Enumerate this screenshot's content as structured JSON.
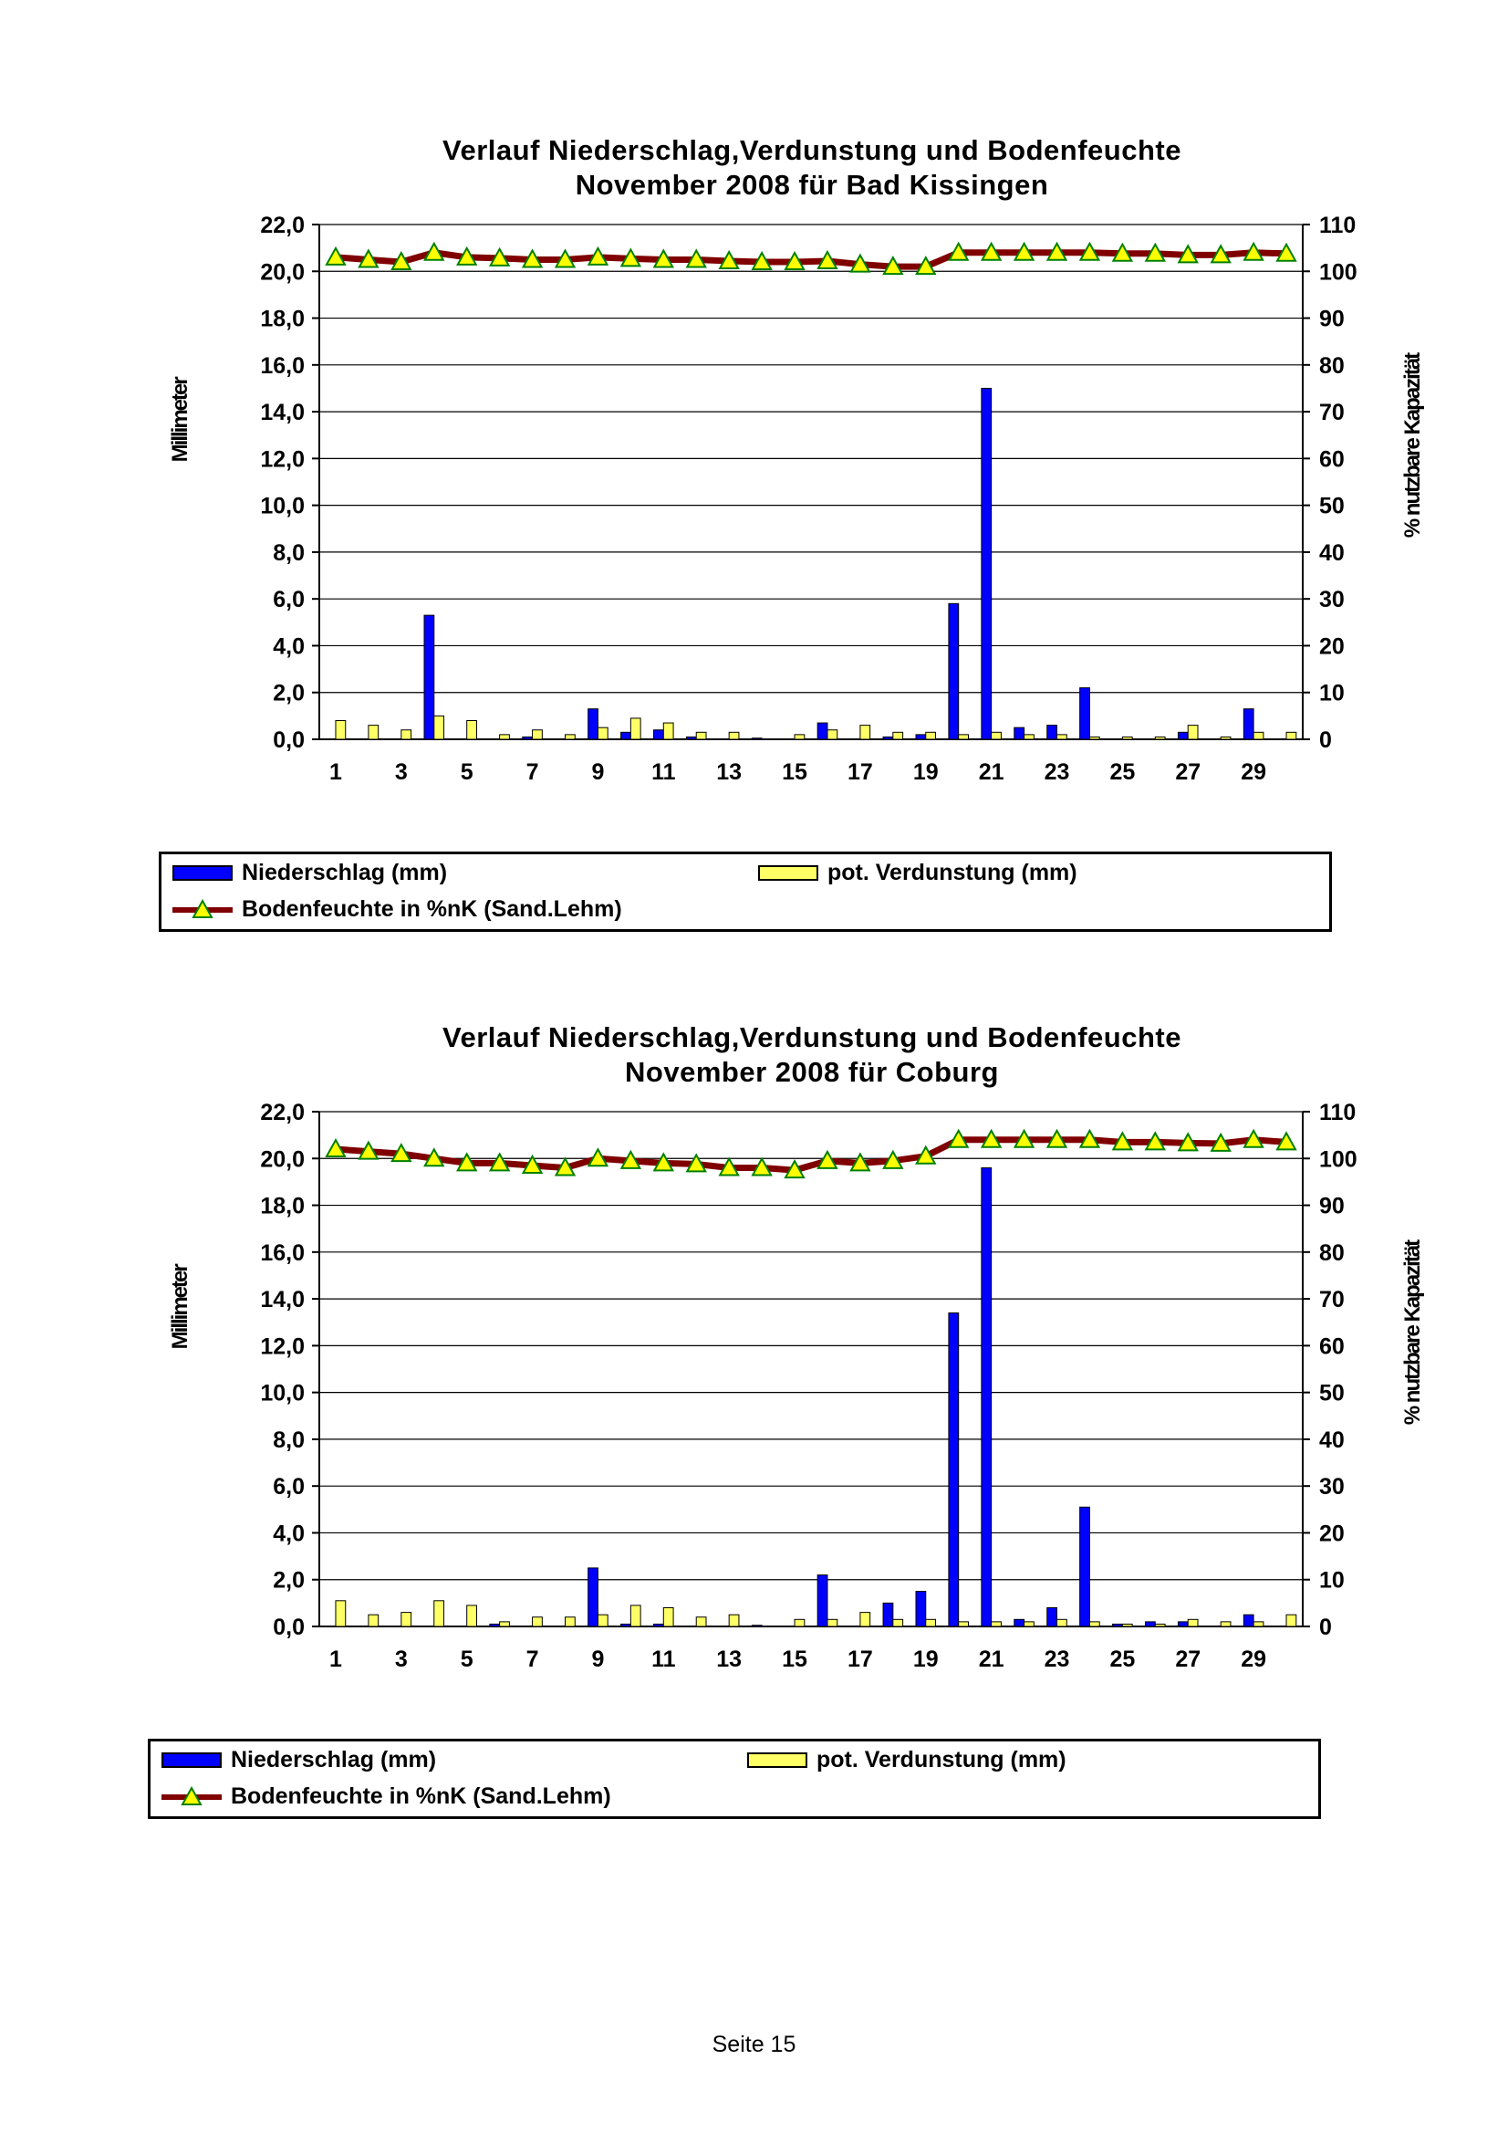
{
  "charts": [
    {
      "title_line1": "Verlauf Niederschlag,Verdunstung und Bodenfeuchte",
      "title_line2": "November  2008 für Bad Kissingen",
      "legend": {
        "precip": "Niederschlag (mm)",
        "evap": "pot. Verdunstung (mm)",
        "moisture": "Bodenfeuchte in %nK (Sand.Lehm)"
      }
    },
    {
      "title_line1": "Verlauf Niederschlag,Verdunstung und Bodenfeuchte",
      "title_line2": "November 2008 für Coburg",
      "legend": {
        "precip": "Niederschlag (mm)",
        "evap": "pot. Verdunstung (mm)",
        "moisture": "Bodenfeuchte in %nK (Sand.Lehm)"
      }
    }
  ],
  "footer": "Seite 15",
  "colors": {
    "precip": "#0000ff",
    "evap": "#ffff66",
    "moisture_line": "#800000",
    "moisture_marker": "#ffff00",
    "marker_edge": "#008000"
  },
  "chart_data": [
    {
      "type": "bar",
      "title": "Verlauf Niederschlag,Verdunstung und Bodenfeuchte November  2008 für Bad Kissingen",
      "ylabel": "Millimeter",
      "y2label": "% nutzbare Kapazität",
      "ylim": [
        0,
        22
      ],
      "y2lim": [
        0,
        110
      ],
      "yticks": [
        "0,0",
        "2,0",
        "4,0",
        "6,0",
        "8,0",
        "10,0",
        "12,0",
        "14,0",
        "16,0",
        "18,0",
        "20,0",
        "22,0"
      ],
      "y2ticks": [
        "0",
        "10",
        "20",
        "30",
        "40",
        "50",
        "60",
        "70",
        "80",
        "90",
        "100",
        "110"
      ],
      "xticks": [
        "1",
        "3",
        "5",
        "7",
        "9",
        "11",
        "13",
        "15",
        "17",
        "19",
        "21",
        "23",
        "25",
        "27",
        "29"
      ],
      "x": [
        1,
        2,
        3,
        4,
        5,
        6,
        7,
        8,
        9,
        10,
        11,
        12,
        13,
        14,
        15,
        16,
        17,
        18,
        19,
        20,
        21,
        22,
        23,
        24,
        25,
        26,
        27,
        28,
        29,
        30
      ],
      "grid": true,
      "legend_position": "bottom",
      "series": [
        {
          "name": "Niederschlag (mm)",
          "type": "bar",
          "axis": "left",
          "values": [
            0,
            0,
            0,
            5.3,
            0,
            0,
            0.1,
            0,
            1.3,
            0.3,
            0.4,
            0.1,
            0,
            0.05,
            0,
            0.7,
            0,
            0.1,
            0.2,
            5.8,
            15.0,
            0.5,
            0.6,
            2.2,
            0,
            0,
            0.3,
            0,
            1.3,
            0
          ]
        },
        {
          "name": "pot. Verdunstung (mm)",
          "type": "bar",
          "axis": "left",
          "values": [
            0.8,
            0.6,
            0.4,
            1.0,
            0.8,
            0.2,
            0.4,
            0.2,
            0.5,
            0.9,
            0.7,
            0.3,
            0.3,
            0,
            0.2,
            0.4,
            0.6,
            0.3,
            0.3,
            0.2,
            0.3,
            0.2,
            0.2,
            0.1,
            0.1,
            0.1,
            0.6,
            0.1,
            0.3,
            0.3
          ]
        },
        {
          "name": "Bodenfeuchte in %nK (Sand.Lehm)",
          "type": "line",
          "axis": "right",
          "values": [
            103,
            102.5,
            102,
            104,
            103,
            102.8,
            102.5,
            102.5,
            103,
            102.7,
            102.5,
            102.5,
            102.2,
            102,
            102,
            102.2,
            101.5,
            101,
            101,
            104,
            104,
            104,
            104,
            104,
            103.8,
            103.8,
            103.5,
            103.5,
            104,
            103.8
          ]
        }
      ]
    },
    {
      "type": "bar",
      "title": "Verlauf Niederschlag,Verdunstung und Bodenfeuchte November 2008 für Coburg",
      "ylabel": "Millimeter",
      "y2label": "% nutzbare Kapazität",
      "ylim": [
        0,
        22
      ],
      "y2lim": [
        0,
        110
      ],
      "yticks": [
        "0,0",
        "2,0",
        "4,0",
        "6,0",
        "8,0",
        "10,0",
        "12,0",
        "14,0",
        "16,0",
        "18,0",
        "20,0",
        "22,0"
      ],
      "y2ticks": [
        "0",
        "10",
        "20",
        "30",
        "40",
        "50",
        "60",
        "70",
        "80",
        "90",
        "100",
        "110"
      ],
      "xticks": [
        "1",
        "3",
        "5",
        "7",
        "9",
        "11",
        "13",
        "15",
        "17",
        "19",
        "21",
        "23",
        "25",
        "27",
        "29"
      ],
      "x": [
        1,
        2,
        3,
        4,
        5,
        6,
        7,
        8,
        9,
        10,
        11,
        12,
        13,
        14,
        15,
        16,
        17,
        18,
        19,
        20,
        21,
        22,
        23,
        24,
        25,
        26,
        27,
        28,
        29,
        30
      ],
      "grid": true,
      "legend_position": "bottom",
      "series": [
        {
          "name": "Niederschlag (mm)",
          "type": "bar",
          "axis": "left",
          "values": [
            0,
            0,
            0,
            0,
            0,
            0.1,
            0,
            0,
            2.5,
            0.1,
            0.1,
            0,
            0,
            0.05,
            0,
            2.2,
            0,
            1.0,
            1.5,
            13.4,
            19.6,
            0.3,
            0.8,
            5.1,
            0.1,
            0.2,
            0.2,
            0,
            0.5,
            0
          ]
        },
        {
          "name": "pot. Verdunstung (mm)",
          "type": "bar",
          "axis": "left",
          "values": [
            1.1,
            0.5,
            0.6,
            1.1,
            0.9,
            0.2,
            0.4,
            0.4,
            0.5,
            0.9,
            0.8,
            0.4,
            0.5,
            0,
            0.3,
            0.3,
            0.6,
            0.3,
            0.3,
            0.2,
            0.2,
            0.2,
            0.3,
            0.2,
            0.1,
            0.1,
            0.3,
            0.2,
            0.2,
            0.5
          ]
        },
        {
          "name": "Bodenfeuchte in %nK (Sand.Lehm)",
          "type": "line",
          "axis": "right",
          "values": [
            102,
            101.5,
            101,
            100,
            99,
            99,
            98.5,
            98,
            100,
            99.5,
            99,
            98.8,
            98,
            98,
            97.5,
            99.5,
            99,
            99.5,
            100.5,
            104,
            104,
            104,
            104,
            104,
            103.5,
            103.5,
            103.3,
            103.2,
            104,
            103.5
          ]
        }
      ]
    }
  ]
}
